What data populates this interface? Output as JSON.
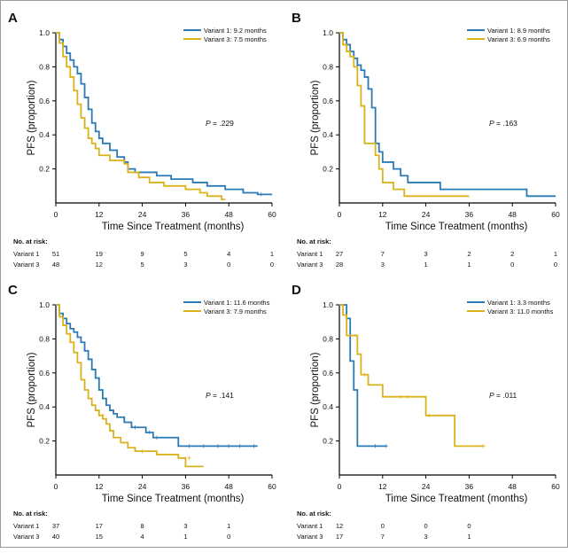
{
  "figure": {
    "colors": {
      "variant1": "#2a7ab5",
      "variant3": "#d9b21c",
      "axis": "#000000"
    },
    "xlabel": "Time Since Treatment (months)",
    "ylabel": "PFS (proportion)",
    "risk_header": "No. at risk:",
    "censor_symbol": "+"
  },
  "chart_data": [
    {
      "type": "line",
      "panel": "A",
      "xlim": [
        0,
        60
      ],
      "ylim": [
        0,
        1
      ],
      "xticks": [
        "0",
        "12",
        "24",
        "36",
        "48",
        "60"
      ],
      "yticks": [
        "0.2",
        "0.4",
        "0.6",
        "0.8",
        "1.0"
      ],
      "legend": [
        "Variant 1: 9.2 months",
        "Variant 3: 7.5 months"
      ],
      "pvalue_prefix": "P",
      "pvalue_text": " = .229",
      "risk": {
        "times": [
          0,
          12,
          24,
          36,
          48,
          60
        ],
        "rows": [
          {
            "label": "Variant 1",
            "values": [
              "51",
              "19",
              "9",
              "5",
              "4",
              "1"
            ]
          },
          {
            "label": "Variant 3",
            "values": [
              "48",
              "12",
              "5",
              "3",
              "0",
              "0"
            ]
          }
        ]
      },
      "series": [
        {
          "name": "Variant 1",
          "steps": [
            [
              0,
              1
            ],
            [
              1,
              0.96
            ],
            [
              2,
              0.92
            ],
            [
              3,
              0.88
            ],
            [
              4,
              0.84
            ],
            [
              5,
              0.8
            ],
            [
              6,
              0.76
            ],
            [
              7,
              0.7
            ],
            [
              8,
              0.62
            ],
            [
              9,
              0.55
            ],
            [
              10,
              0.47
            ],
            [
              11,
              0.42
            ],
            [
              12,
              0.38
            ],
            [
              13,
              0.35
            ],
            [
              15,
              0.31
            ],
            [
              17,
              0.27
            ],
            [
              19,
              0.24
            ],
            [
              20,
              0.2
            ],
            [
              22,
              0.18
            ],
            [
              28,
              0.16
            ],
            [
              32,
              0.14
            ],
            [
              38,
              0.12
            ],
            [
              42,
              0.1
            ],
            [
              47,
              0.08
            ],
            [
              52,
              0.06
            ],
            [
              56,
              0.05
            ],
            [
              60,
              0.05
            ]
          ],
          "censor": [
            [
              57,
              0.05
            ]
          ]
        },
        {
          "name": "Variant 3",
          "steps": [
            [
              0,
              1
            ],
            [
              1,
              0.94
            ],
            [
              2,
              0.86
            ],
            [
              3,
              0.8
            ],
            [
              4,
              0.74
            ],
            [
              5,
              0.66
            ],
            [
              6,
              0.58
            ],
            [
              7,
              0.5
            ],
            [
              8,
              0.44
            ],
            [
              9,
              0.38
            ],
            [
              10,
              0.35
            ],
            [
              11,
              0.32
            ],
            [
              12,
              0.28
            ],
            [
              15,
              0.25
            ],
            [
              19,
              0.23
            ],
            [
              20,
              0.18
            ],
            [
              23,
              0.15
            ],
            [
              26,
              0.12
            ],
            [
              30,
              0.1
            ],
            [
              36,
              0.08
            ],
            [
              40,
              0.06
            ],
            [
              42,
              0.04
            ],
            [
              46,
              0.02
            ],
            [
              47,
              0.02
            ]
          ],
          "censor": []
        }
      ]
    },
    {
      "type": "line",
      "panel": "B",
      "xlim": [
        0,
        60
      ],
      "ylim": [
        0,
        1
      ],
      "xticks": [
        "0",
        "12",
        "24",
        "36",
        "48",
        "60"
      ],
      "yticks": [
        "0.2",
        "0.4",
        "0.6",
        "0.8",
        "1.0"
      ],
      "legend": [
        "Variant 1: 8.9 months",
        "Variant 3: 6.9 months"
      ],
      "pvalue_prefix": "P",
      "pvalue_text": " = .163",
      "risk": {
        "times": [
          0,
          12,
          24,
          36,
          48,
          60
        ],
        "rows": [
          {
            "label": "Variant 1",
            "values": [
              "27",
              "7",
              "3",
              "2",
              "2",
              "1"
            ]
          },
          {
            "label": "Variant 3",
            "values": [
              "28",
              "3",
              "1",
              "1",
              "0",
              "0"
            ]
          }
        ]
      },
      "series": [
        {
          "name": "Variant 1",
          "steps": [
            [
              0,
              1
            ],
            [
              1,
              0.96
            ],
            [
              2,
              0.93
            ],
            [
              3,
              0.89
            ],
            [
              4,
              0.85
            ],
            [
              5,
              0.81
            ],
            [
              6,
              0.78
            ],
            [
              7,
              0.74
            ],
            [
              8,
              0.67
            ],
            [
              9,
              0.56
            ],
            [
              10,
              0.35
            ],
            [
              11,
              0.3
            ],
            [
              12,
              0.24
            ],
            [
              15,
              0.2
            ],
            [
              17,
              0.16
            ],
            [
              19,
              0.12
            ],
            [
              28,
              0.08
            ],
            [
              52,
              0.04
            ],
            [
              60,
              0.04
            ]
          ],
          "censor": []
        },
        {
          "name": "Variant 3",
          "steps": [
            [
              0,
              1
            ],
            [
              1,
              0.93
            ],
            [
              2,
              0.89
            ],
            [
              3,
              0.86
            ],
            [
              4,
              0.8
            ],
            [
              5,
              0.69
            ],
            [
              6,
              0.57
            ],
            [
              7,
              0.35
            ],
            [
              10,
              0.28
            ],
            [
              11,
              0.2
            ],
            [
              12,
              0.12
            ],
            [
              15,
              0.08
            ],
            [
              18,
              0.04
            ],
            [
              36,
              0.04
            ]
          ],
          "censor": []
        }
      ]
    },
    {
      "type": "line",
      "panel": "C",
      "xlim": [
        0,
        60
      ],
      "ylim": [
        0,
        1
      ],
      "xticks": [
        "0",
        "12",
        "24",
        "36",
        "48",
        "60"
      ],
      "yticks": [
        "0.2",
        "0.4",
        "0.6",
        "0.8",
        "1.0"
      ],
      "legend": [
        "Variant 1: 11.6 months",
        "Variant 3:   7.9 months"
      ],
      "pvalue_prefix": "P",
      "pvalue_text": " = .141",
      "risk": {
        "times": [
          0,
          12,
          24,
          36,
          48,
          60
        ],
        "rows": [
          {
            "label": "Variant 1",
            "values": [
              "37",
              "17",
              "8",
              "3",
              "1",
              ""
            ]
          },
          {
            "label": "Variant 3",
            "values": [
              "40",
              "15",
              "4",
              "1",
              "0",
              ""
            ]
          }
        ]
      },
      "series": [
        {
          "name": "Variant 1",
          "steps": [
            [
              0,
              1
            ],
            [
              1,
              0.95
            ],
            [
              2,
              0.92
            ],
            [
              3,
              0.89
            ],
            [
              4,
              0.86
            ],
            [
              5,
              0.84
            ],
            [
              6,
              0.81
            ],
            [
              7,
              0.78
            ],
            [
              8,
              0.73
            ],
            [
              9,
              0.68
            ],
            [
              10,
              0.62
            ],
            [
              11,
              0.57
            ],
            [
              12,
              0.5
            ],
            [
              13,
              0.45
            ],
            [
              14,
              0.41
            ],
            [
              15,
              0.38
            ],
            [
              16,
              0.36
            ],
            [
              17,
              0.34
            ],
            [
              19,
              0.31
            ],
            [
              21,
              0.28
            ],
            [
              25,
              0.25
            ],
            [
              27,
              0.22
            ],
            [
              34,
              0.17
            ],
            [
              56,
              0.17
            ]
          ],
          "censor": [
            [
              22,
              0.28
            ],
            [
              26,
              0.25
            ],
            [
              28,
              0.22
            ],
            [
              37,
              0.17
            ],
            [
              41,
              0.17
            ],
            [
              45,
              0.17
            ],
            [
              48,
              0.17
            ],
            [
              51,
              0.17
            ],
            [
              55,
              0.17
            ]
          ]
        },
        {
          "name": "Variant 3",
          "steps": [
            [
              0,
              1
            ],
            [
              1,
              0.93
            ],
            [
              2,
              0.88
            ],
            [
              3,
              0.83
            ],
            [
              4,
              0.78
            ],
            [
              5,
              0.72
            ],
            [
              6,
              0.66
            ],
            [
              7,
              0.56
            ],
            [
              8,
              0.5
            ],
            [
              9,
              0.45
            ],
            [
              10,
              0.41
            ],
            [
              11,
              0.38
            ],
            [
              12,
              0.35
            ],
            [
              13,
              0.33
            ],
            [
              14,
              0.3
            ],
            [
              15,
              0.26
            ],
            [
              16,
              0.22
            ],
            [
              18,
              0.19
            ],
            [
              20,
              0.16
            ],
            [
              22,
              0.14
            ],
            [
              28,
              0.12
            ],
            [
              34,
              0.1
            ],
            [
              36,
              0.05
            ],
            [
              41,
              0.05
            ]
          ],
          "censor": [
            [
              13,
              0.35
            ],
            [
              24,
              0.14
            ],
            [
              37,
              0.1
            ]
          ]
        }
      ]
    },
    {
      "type": "line",
      "panel": "D",
      "xlim": [
        0,
        60
      ],
      "ylim": [
        0,
        1
      ],
      "xticks": [
        "0",
        "12",
        "24",
        "36",
        "48",
        "60"
      ],
      "yticks": [
        "0.2",
        "0.4",
        "0.6",
        "0.8",
        "1.0"
      ],
      "legend": [
        "Variant 1:   3.3 months",
        "Variant 3: 11.0 months"
      ],
      "pvalue_prefix": "P",
      "pvalue_text": " = .011",
      "risk": {
        "times": [
          0,
          12,
          24,
          36,
          48,
          60
        ],
        "rows": [
          {
            "label": "Variant 1",
            "values": [
              "12",
              "0",
              "0",
              "0",
              "",
              ""
            ]
          },
          {
            "label": "Variant 3",
            "values": [
              "17",
              "7",
              "3",
              "1",
              "",
              ""
            ]
          }
        ]
      },
      "series": [
        {
          "name": "Variant 1",
          "steps": [
            [
              0,
              1
            ],
            [
              2,
              0.92
            ],
            [
              3,
              0.67
            ],
            [
              4,
              0.5
            ],
            [
              5,
              0.17
            ],
            [
              13,
              0.17
            ]
          ],
          "censor": [
            [
              10,
              0.17
            ],
            [
              13,
              0.17
            ]
          ]
        },
        {
          "name": "Variant 3",
          "steps": [
            [
              0,
              1
            ],
            [
              1,
              0.94
            ],
            [
              2,
              0.82
            ],
            [
              5,
              0.71
            ],
            [
              6,
              0.59
            ],
            [
              8,
              0.53
            ],
            [
              12,
              0.46
            ],
            [
              24,
              0.35
            ],
            [
              32,
              0.17
            ],
            [
              40,
              0.17
            ]
          ],
          "censor": [
            [
              7,
              0.59
            ],
            [
              17,
              0.46
            ],
            [
              19,
              0.46
            ],
            [
              25,
              0.35
            ],
            [
              40,
              0.17
            ]
          ]
        }
      ]
    }
  ]
}
